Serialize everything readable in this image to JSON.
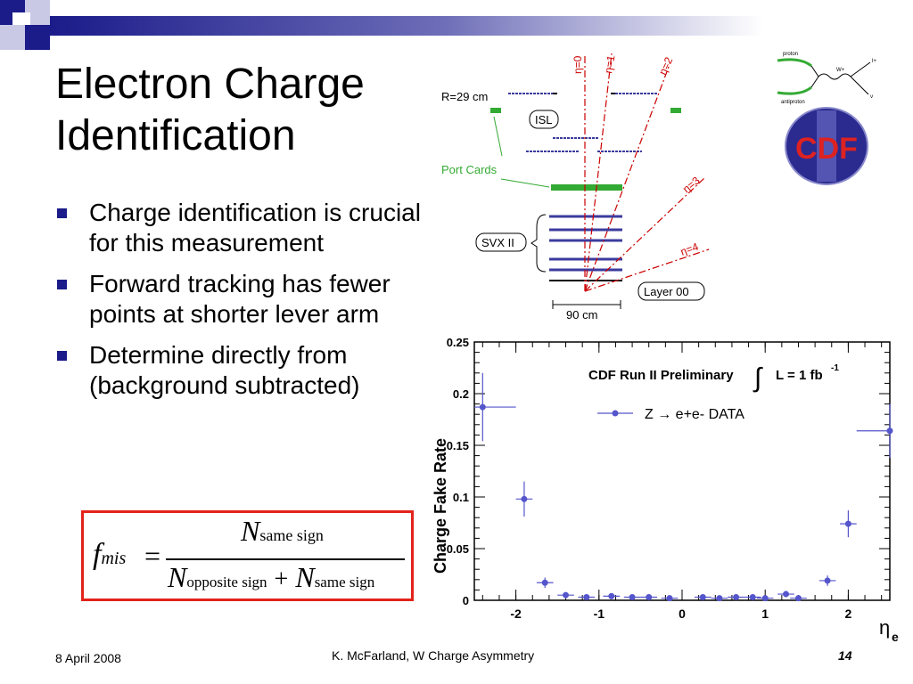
{
  "slide": {
    "title_line1": "Electron Charge",
    "title_line2": "Identification",
    "bullets": [
      "Charge identification is crucial for this measurement",
      "Forward tracking has fewer points at shorter lever arm",
      "Determine directly from (background subtracted)"
    ],
    "formula": {
      "lhs_f": "f",
      "lhs_sub": "mis",
      "equals": "=",
      "num_N": "N",
      "num_sub": "same sign",
      "den_N1": "N",
      "den_sub1": "opposite sign",
      "plus": "+",
      "den_N2": "N",
      "den_sub2": "same sign"
    },
    "footer": {
      "date": "8 April 2008",
      "center": "K. McFarland, W Charge Asymmetry",
      "page": "14"
    },
    "colors": {
      "accent_navy": "#1b1b8a",
      "formula_border": "#e2231a",
      "detector_blue": "#3b3b9e",
      "port_card_green": "#33aa33",
      "eta_red": "#cc0000"
    }
  },
  "detector": {
    "r_label": "R=29 cm",
    "isl_label": "ISL",
    "port_cards_label": "Port Cards",
    "svx_label": "SVX II",
    "layer00_label": "Layer 00",
    "scale_label": "90 cm",
    "eta_labels": [
      "η=0",
      "η=1",
      "η=2",
      "η=3",
      "η=4"
    ]
  },
  "logos": {
    "cdf_text": "CDF",
    "feynman_labels": [
      "proton",
      "antiproton",
      "W+",
      "l+",
      "ν"
    ]
  },
  "chart_data": {
    "type": "scatter",
    "title": "CDF Run II Preliminary",
    "lumi_text": "L = 1 fb",
    "lumi_sup": "-1",
    "integral_symbol": "∫",
    "ylabel": "Charge Fake Rate",
    "xlabel_main": "η",
    "xlabel_sub": "e",
    "legend": "Z → e+e- DATA",
    "xlim": [
      -2.5,
      2.5
    ],
    "ylim": [
      0,
      0.25
    ],
    "xticks": [
      -2,
      -1,
      0,
      1,
      2
    ],
    "yticks": [
      0,
      0.05,
      0.1,
      0.15,
      0.2,
      0.25
    ],
    "ytick_labels": [
      "0",
      "0.05",
      "0.1",
      "0.15",
      "0.2",
      "0.25"
    ],
    "grid": false,
    "series": [
      {
        "name": "Z → e+e- DATA",
        "color": "#5555cc",
        "points": [
          {
            "x": -2.4,
            "y": 0.187,
            "xerr": 0.4,
            "yerr": 0.033
          },
          {
            "x": -1.9,
            "y": 0.098,
            "xerr": 0.1,
            "yerr": 0.017
          },
          {
            "x": -1.65,
            "y": 0.017,
            "xerr": 0.1,
            "yerr": 0.005
          },
          {
            "x": -1.4,
            "y": 0.005,
            "xerr": 0.1,
            "yerr": 0.003
          },
          {
            "x": -1.15,
            "y": 0.003,
            "xerr": 0.1,
            "yerr": 0.002
          },
          {
            "x": -0.85,
            "y": 0.004,
            "xerr": 0.1,
            "yerr": 0.002
          },
          {
            "x": -0.6,
            "y": 0.003,
            "xerr": 0.1,
            "yerr": 0.002
          },
          {
            "x": -0.4,
            "y": 0.003,
            "xerr": 0.1,
            "yerr": 0.002
          },
          {
            "x": -0.15,
            "y": 0.002,
            "xerr": 0.1,
            "yerr": 0.002
          },
          {
            "x": 0.25,
            "y": 0.003,
            "xerr": 0.1,
            "yerr": 0.002
          },
          {
            "x": 0.45,
            "y": 0.002,
            "xerr": 0.1,
            "yerr": 0.002
          },
          {
            "x": 0.65,
            "y": 0.003,
            "xerr": 0.1,
            "yerr": 0.002
          },
          {
            "x": 0.85,
            "y": 0.003,
            "xerr": 0.1,
            "yerr": 0.002
          },
          {
            "x": 1.0,
            "y": 0.002,
            "xerr": 0.1,
            "yerr": 0.002
          },
          {
            "x": 1.25,
            "y": 0.006,
            "xerr": 0.1,
            "yerr": 0.003
          },
          {
            "x": 1.4,
            "y": 0.002,
            "xerr": 0.1,
            "yerr": 0.002
          },
          {
            "x": 1.75,
            "y": 0.019,
            "xerr": 0.1,
            "yerr": 0.005
          },
          {
            "x": 2.0,
            "y": 0.074,
            "xerr": 0.1,
            "yerr": 0.013
          },
          {
            "x": 2.5,
            "y": 0.164,
            "xerr": 0.4,
            "yerr": 0.026
          }
        ]
      }
    ]
  }
}
